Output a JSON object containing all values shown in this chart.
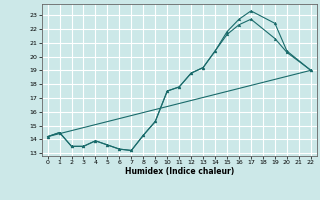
{
  "title": "",
  "xlabel": "Humidex (Indice chaleur)",
  "bg_color": "#cce8e8",
  "grid_color": "#ffffff",
  "line_color": "#1a6b6b",
  "xlim": [
    -0.5,
    22.5
  ],
  "ylim": [
    12.8,
    23.8
  ],
  "xticks": [
    0,
    1,
    2,
    3,
    4,
    5,
    6,
    7,
    8,
    9,
    10,
    11,
    12,
    13,
    14,
    15,
    16,
    17,
    18,
    19,
    20,
    21,
    22
  ],
  "yticks": [
    13,
    14,
    15,
    16,
    17,
    18,
    19,
    20,
    21,
    22,
    23
  ],
  "line1_x": [
    0,
    1,
    2,
    3,
    4,
    5,
    6,
    7,
    8,
    9,
    10,
    11,
    12,
    13,
    14,
    15,
    16,
    17,
    19,
    20,
    22
  ],
  "line1_y": [
    14.2,
    14.5,
    13.5,
    13.5,
    13.9,
    13.6,
    13.3,
    13.2,
    14.3,
    15.3,
    17.5,
    17.8,
    18.8,
    19.2,
    20.4,
    21.8,
    22.7,
    23.3,
    22.4,
    20.4,
    19.0
  ],
  "line2_x": [
    0,
    1,
    2,
    3,
    4,
    5,
    6,
    7,
    8,
    9,
    10,
    11,
    12,
    13,
    14,
    15,
    16,
    17,
    19,
    20,
    22
  ],
  "line2_y": [
    14.2,
    14.5,
    13.5,
    13.5,
    13.9,
    13.6,
    13.3,
    13.2,
    14.3,
    15.3,
    17.5,
    17.8,
    18.8,
    19.2,
    20.4,
    21.6,
    22.3,
    22.7,
    21.3,
    20.3,
    19.0
  ],
  "line3_x": [
    0,
    22
  ],
  "line3_y": [
    14.2,
    19.0
  ]
}
